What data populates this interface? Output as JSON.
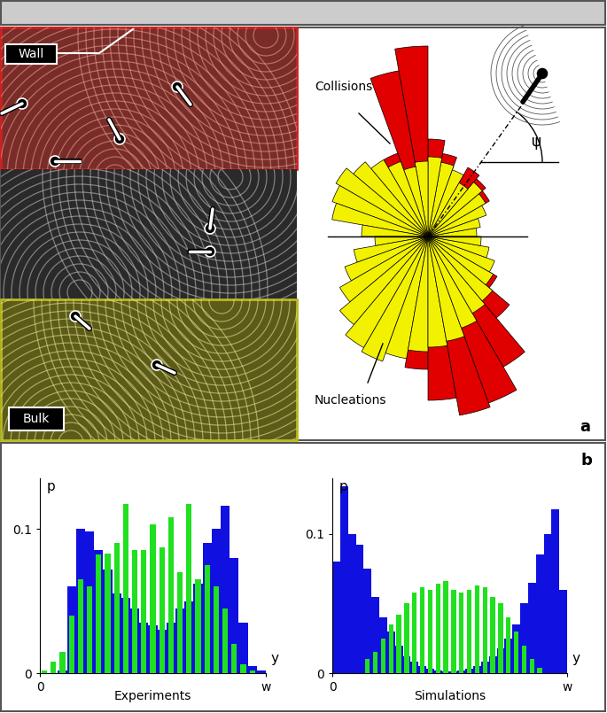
{
  "panels": {
    "a": {
      "label": "a",
      "image_labels": {
        "wall": "Wall",
        "bulk": "Bulk"
      }
    },
    "b": {
      "label": "b"
    }
  },
  "chart_data": [
    {
      "type": "rose",
      "angle_label": "ψ",
      "tick_labels": false,
      "bins": [
        0,
        10,
        20,
        30,
        40,
        50,
        60,
        70,
        80,
        90,
        100,
        110,
        120,
        130,
        140,
        150,
        160,
        170,
        180,
        190,
        200,
        210,
        220,
        230,
        240,
        250,
        260,
        270,
        280,
        290,
        300,
        310,
        320,
        330,
        340,
        350,
        360
      ],
      "ylim": [
        0,
        220
      ],
      "series": [
        {
          "name": "Collisions",
          "color": "#e00000",
          "values": [
            20,
            40,
            50,
            80,
            85,
            90,
            75,
            95,
            110,
            215,
            190,
            100,
            40,
            30,
            20,
            20,
            15,
            10,
            15,
            20,
            30,
            40,
            60,
            80,
            100,
            130,
            150,
            185,
            205,
            200,
            170,
            120,
            90,
            60,
            40,
            30
          ]
        },
        {
          "name": "Nucleations",
          "color": "#f2f200",
          "values": [
            55,
            60,
            70,
            75,
            80,
            70,
            80,
            85,
            90,
            85,
            80,
            90,
            100,
            110,
            120,
            115,
            110,
            75,
            60,
            85,
            100,
            115,
            130,
            145,
            150,
            140,
            130,
            125,
            120,
            110,
            100,
            95,
            85,
            80,
            70,
            60
          ]
        }
      ]
    },
    {
      "type": "histogram",
      "title": "Experiments",
      "xlabel": "y",
      "ylabel": "p",
      "bins": [
        0,
        1,
        2,
        3,
        4,
        5,
        6,
        7,
        8,
        9,
        10,
        11,
        12,
        13,
        14,
        15,
        16,
        17,
        18,
        19,
        20,
        21,
        22,
        23,
        24,
        25
      ],
      "xlim": [
        0,
        25
      ],
      "xticks": [
        0,
        {
          "value": 25,
          "label": "w"
        }
      ],
      "ylim": [
        0,
        0.135
      ],
      "yticks": [
        0,
        0.1
      ],
      "series": [
        {
          "color": "#1010e0",
          "values": [
            0,
            0,
            0.002,
            0.06,
            0.1,
            0.098,
            0.085,
            0.072,
            0.055,
            0.052,
            0.045,
            0.035,
            0.033,
            0.03,
            0.035,
            0.045,
            0.05,
            0.062,
            0.09,
            0.1,
            0.116,
            0.08,
            0.035,
            0.005,
            0.002
          ]
        },
        {
          "color": "#20e020",
          "values": [
            0.002,
            0.008,
            0.015,
            0.04,
            0.065,
            0.06,
            0.082,
            0.083,
            0.09,
            0.117,
            0.085,
            0.085,
            0.103,
            0.087,
            0.108,
            0.07,
            0.117,
            0.065,
            0.075,
            0.06,
            0.045,
            0.02,
            0.006,
            0.002,
            0
          ]
        }
      ]
    },
    {
      "type": "histogram",
      "title": "Simulations",
      "xlabel": "y",
      "ylabel": "p",
      "bins": [
        0,
        1,
        2,
        3,
        4,
        5,
        6,
        7,
        8,
        9,
        10,
        11,
        12,
        13,
        14,
        15,
        16,
        17,
        18,
        19,
        20,
        21,
        22,
        23,
        24,
        25,
        26,
        27,
        28,
        29,
        30
      ],
      "xlim": [
        0,
        30
      ],
      "xticks": [
        0,
        {
          "value": 30,
          "label": "w"
        }
      ],
      "ylim": [
        0,
        0.14
      ],
      "yticks": [
        0,
        0.1
      ],
      "series": [
        {
          "color": "#1010e0",
          "values": [
            0.08,
            0.134,
            0.1,
            0.092,
            0.075,
            0.055,
            0.04,
            0.03,
            0.02,
            0.012,
            0.008,
            0.005,
            0.003,
            0.002,
            0.001,
            0.001,
            0.002,
            0.003,
            0.005,
            0.008,
            0.012,
            0.018,
            0.025,
            0.035,
            0.05,
            0.065,
            0.085,
            0.1,
            0.118,
            0.06
          ]
        },
        {
          "color": "#20e020",
          "values": [
            0,
            0,
            0,
            0,
            0.01,
            0.015,
            0.025,
            0.035,
            0.042,
            0.05,
            0.058,
            0.062,
            0.06,
            0.064,
            0.066,
            0.06,
            0.058,
            0.06,
            0.063,
            0.062,
            0.055,
            0.05,
            0.04,
            0.03,
            0.02,
            0.01,
            0.004,
            0,
            0,
            0
          ]
        }
      ]
    }
  ]
}
